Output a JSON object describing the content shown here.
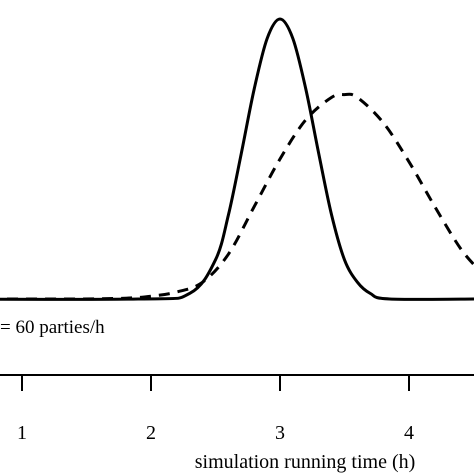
{
  "chart_data": {
    "type": "line",
    "xlabel": "simulation running time (h)",
    "ylabel": "",
    "xlim": [
      0.04,
      4.55
    ],
    "ylim": [
      0,
      1
    ],
    "grid": false,
    "x_ticks": [
      {
        "value": 1,
        "label": "1"
      },
      {
        "value": 2,
        "label": "2"
      },
      {
        "value": 3,
        "label": "3"
      },
      {
        "value": 4,
        "label": "4"
      }
    ],
    "annotation": "= 60 parties/h",
    "series": [
      {
        "style": "solid",
        "color": "#000000",
        "points": [
          [
            0.0,
            0
          ],
          [
            1.9,
            0
          ],
          [
            2.3,
            0.02
          ],
          [
            2.5,
            0.14
          ],
          [
            2.6,
            0.3
          ],
          [
            2.7,
            0.52
          ],
          [
            2.8,
            0.75
          ],
          [
            2.9,
            0.93
          ],
          [
            3.0,
            1.0
          ],
          [
            3.1,
            0.93
          ],
          [
            3.2,
            0.75
          ],
          [
            3.3,
            0.52
          ],
          [
            3.4,
            0.3
          ],
          [
            3.5,
            0.14
          ],
          [
            3.6,
            0.06
          ],
          [
            3.7,
            0.02
          ],
          [
            3.85,
            0
          ],
          [
            4.55,
            0
          ]
        ]
      },
      {
        "style": "dashed",
        "color": "#000000",
        "points": [
          [
            0.0,
            0
          ],
          [
            0.7,
            0
          ],
          [
            1.4,
            0
          ],
          [
            1.8,
            0.003
          ],
          [
            2.0,
            0.01
          ],
          [
            2.2,
            0.025
          ],
          [
            2.4,
            0.06
          ],
          [
            2.6,
            0.16
          ],
          [
            2.8,
            0.33
          ],
          [
            3.0,
            0.5
          ],
          [
            3.2,
            0.64
          ],
          [
            3.4,
            0.72
          ],
          [
            3.5,
            0.73
          ],
          [
            3.6,
            0.72
          ],
          [
            3.8,
            0.63
          ],
          [
            4.0,
            0.49
          ],
          [
            4.2,
            0.33
          ],
          [
            4.4,
            0.18
          ],
          [
            4.55,
            0.1
          ]
        ]
      }
    ]
  }
}
